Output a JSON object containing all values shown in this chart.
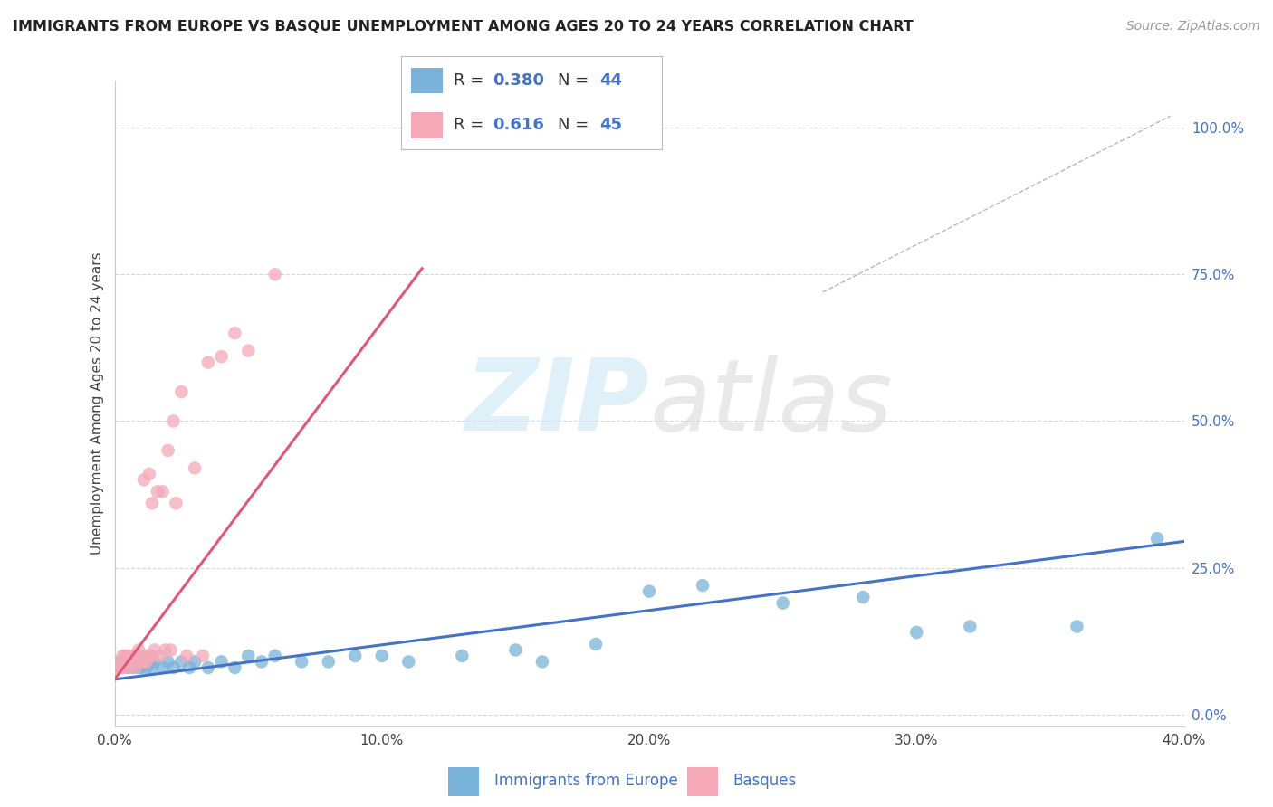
{
  "title": "IMMIGRANTS FROM EUROPE VS BASQUE UNEMPLOYMENT AMONG AGES 20 TO 24 YEARS CORRELATION CHART",
  "source": "Source: ZipAtlas.com",
  "ylabel": "Unemployment Among Ages 20 to 24 years",
  "xlim": [
    0.0,
    0.4
  ],
  "ylim": [
    -0.02,
    1.08
  ],
  "xticks": [
    0.0,
    0.1,
    0.2,
    0.3,
    0.4
  ],
  "xtick_labels": [
    "0.0%",
    "10.0%",
    "20.0%",
    "30.0%",
    "40.0%"
  ],
  "yticks_right": [
    0.0,
    0.25,
    0.5,
    0.75,
    1.0
  ],
  "ytick_labels_right": [
    "0.0%",
    "25.0%",
    "50.0%",
    "75.0%",
    "100.0%"
  ],
  "blue_R": 0.38,
  "blue_N": 44,
  "pink_R": 0.616,
  "pink_N": 45,
  "blue_color": "#7ab3d9",
  "pink_color": "#f4a8b8",
  "blue_line_color": "#4472c4",
  "pink_line_color": "#e05878",
  "grid_color": "#d8d8d8",
  "watermark_zip": "ZIP",
  "watermark_atlas": "atlas",
  "blue_scatter_x": [
    0.001,
    0.002,
    0.003,
    0.004,
    0.005,
    0.006,
    0.007,
    0.008,
    0.009,
    0.01,
    0.011,
    0.012,
    0.013,
    0.014,
    0.015,
    0.018,
    0.02,
    0.022,
    0.025,
    0.028,
    0.03,
    0.035,
    0.04,
    0.045,
    0.05,
    0.055,
    0.06,
    0.07,
    0.08,
    0.09,
    0.1,
    0.11,
    0.13,
    0.15,
    0.16,
    0.18,
    0.2,
    0.22,
    0.25,
    0.28,
    0.3,
    0.32,
    0.36,
    0.39
  ],
  "blue_scatter_y": [
    0.08,
    0.09,
    0.08,
    0.09,
    0.08,
    0.09,
    0.08,
    0.09,
    0.08,
    0.08,
    0.09,
    0.08,
    0.09,
    0.08,
    0.09,
    0.08,
    0.09,
    0.08,
    0.09,
    0.08,
    0.09,
    0.08,
    0.09,
    0.08,
    0.1,
    0.09,
    0.1,
    0.09,
    0.09,
    0.1,
    0.1,
    0.09,
    0.1,
    0.11,
    0.09,
    0.12,
    0.21,
    0.22,
    0.19,
    0.2,
    0.14,
    0.15,
    0.15,
    0.3
  ],
  "pink_scatter_x": [
    0.001,
    0.002,
    0.002,
    0.003,
    0.003,
    0.004,
    0.004,
    0.005,
    0.005,
    0.006,
    0.006,
    0.007,
    0.007,
    0.008,
    0.008,
    0.009,
    0.009,
    0.01,
    0.01,
    0.011,
    0.011,
    0.012,
    0.012,
    0.013,
    0.013,
    0.014,
    0.014,
    0.015,
    0.016,
    0.017,
    0.018,
    0.019,
    0.02,
    0.021,
    0.022,
    0.023,
    0.025,
    0.027,
    0.03,
    0.033,
    0.035,
    0.04,
    0.045,
    0.05,
    0.06
  ],
  "pink_scatter_y": [
    0.08,
    0.08,
    0.09,
    0.08,
    0.1,
    0.09,
    0.1,
    0.08,
    0.1,
    0.09,
    0.09,
    0.09,
    0.1,
    0.08,
    0.1,
    0.09,
    0.11,
    0.09,
    0.1,
    0.4,
    0.09,
    0.09,
    0.1,
    0.1,
    0.41,
    0.1,
    0.36,
    0.11,
    0.38,
    0.1,
    0.38,
    0.11,
    0.45,
    0.11,
    0.5,
    0.36,
    0.55,
    0.1,
    0.42,
    0.1,
    0.6,
    0.61,
    0.65,
    0.62,
    0.75
  ],
  "blue_trend_x": [
    0.0,
    0.4
  ],
  "blue_trend_y": [
    0.06,
    0.295
  ],
  "pink_trend_x": [
    0.0,
    0.115
  ],
  "pink_trend_y": [
    0.06,
    0.76
  ],
  "diag_line_x": [
    0.265,
    0.395
  ],
  "diag_line_y": [
    0.72,
    1.02
  ]
}
